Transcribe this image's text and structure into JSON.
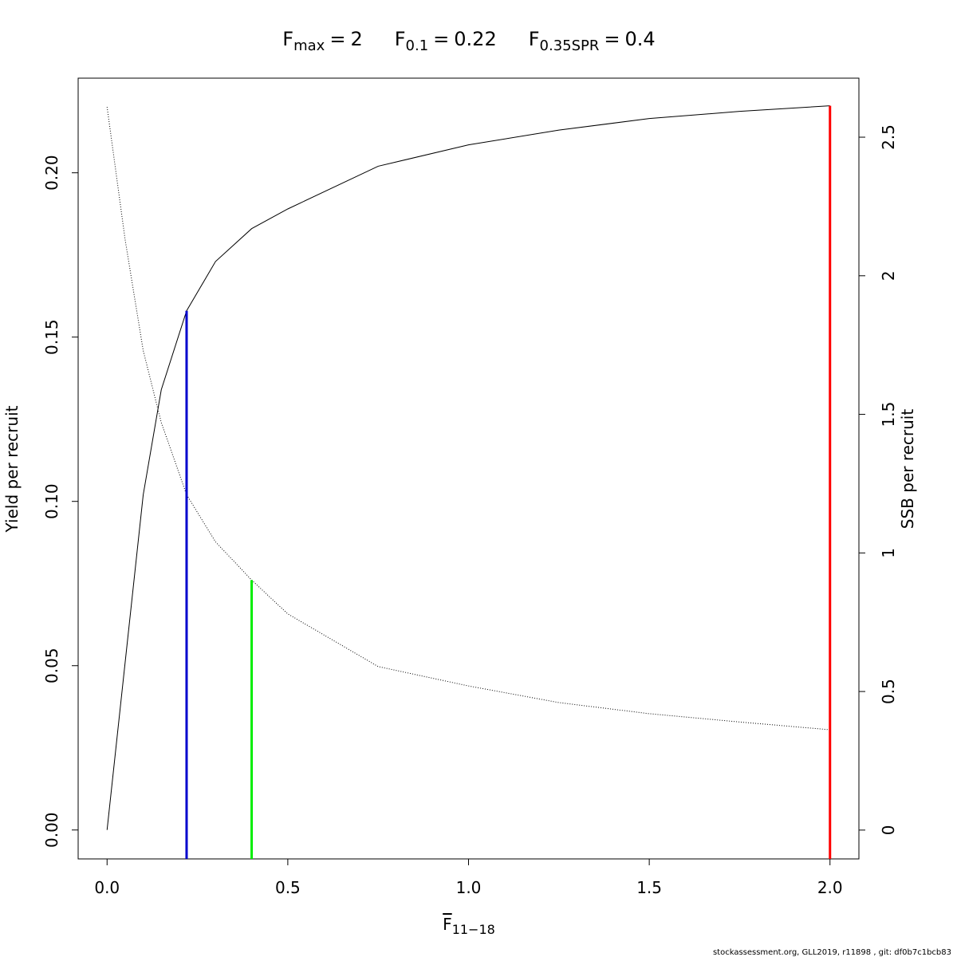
{
  "chart_data": {
    "type": "line",
    "title_parts": [
      {
        "text": "F",
        "sub": "max",
        "relation": "=",
        "value": 2
      },
      {
        "text": "F",
        "sub": "0.1",
        "relation": "=",
        "value": 0.22
      },
      {
        "text": "F",
        "sub": "0.35SPR",
        "relation": "=",
        "value": 0.4
      }
    ],
    "x_label": {
      "text": "F",
      "sub": "11−18"
    },
    "y_label": "Yield per recruit",
    "y2_label": "SSB per recruit",
    "footer": "stockassessment.org, GLL2019, r11898 , git: df0b7c1bcb83",
    "x": [
      0,
      0.05,
      0.1,
      0.15,
      0.22,
      0.3,
      0.4,
      0.5,
      0.75,
      1.0,
      1.25,
      1.5,
      1.75,
      2.0
    ],
    "series": [
      {
        "name": "Yield per recruit",
        "color": "#000000",
        "dash": "solid",
        "axis": "y",
        "values": [
          0,
          0.051,
          0.102,
          0.134,
          0.158,
          0.173,
          0.183,
          0.189,
          0.202,
          0.2085,
          0.213,
          0.2165,
          0.2187,
          0.2204
        ]
      },
      {
        "name": "SSB per recruit",
        "color": "#000000",
        "dash": "dotted",
        "axis": "y2",
        "values": [
          2.609,
          2.13,
          1.73,
          1.47,
          1.21,
          1.04,
          0.902,
          0.78,
          0.59,
          0.52,
          0.46,
          0.42,
          0.39,
          0.362
        ]
      }
    ],
    "reference_lines": [
      {
        "x": 0.22,
        "top": 0.158,
        "axis": "y",
        "color": "#0000cd"
      },
      {
        "x": 0.4,
        "top": 0.902,
        "axis": "y2",
        "color": "#00ee00"
      },
      {
        "x": 2.0,
        "top": 0.2204,
        "axis": "y",
        "color": "#ff0000"
      }
    ],
    "xlim": [
      -0.08,
      2.08
    ],
    "ylim": [
      -0.0088,
      0.2288
    ],
    "y2lim": [
      -0.104,
      2.713
    ],
    "xticks": [
      {
        "value": 0,
        "label": "0.0"
      },
      0.5,
      {
        "value": 1,
        "label": "1.0"
      },
      1.5,
      {
        "value": 2,
        "label": "2.0"
      }
    ],
    "yticks": [
      {
        "value": 0,
        "label": "0.00"
      },
      0.05,
      {
        "value": 0.1,
        "label": "0.10"
      },
      0.15,
      {
        "value": 0.2,
        "label": "0.20"
      }
    ],
    "y2ticks": [
      0,
      0.5,
      1,
      1.5,
      2,
      2.5
    ],
    "grid": false
  }
}
